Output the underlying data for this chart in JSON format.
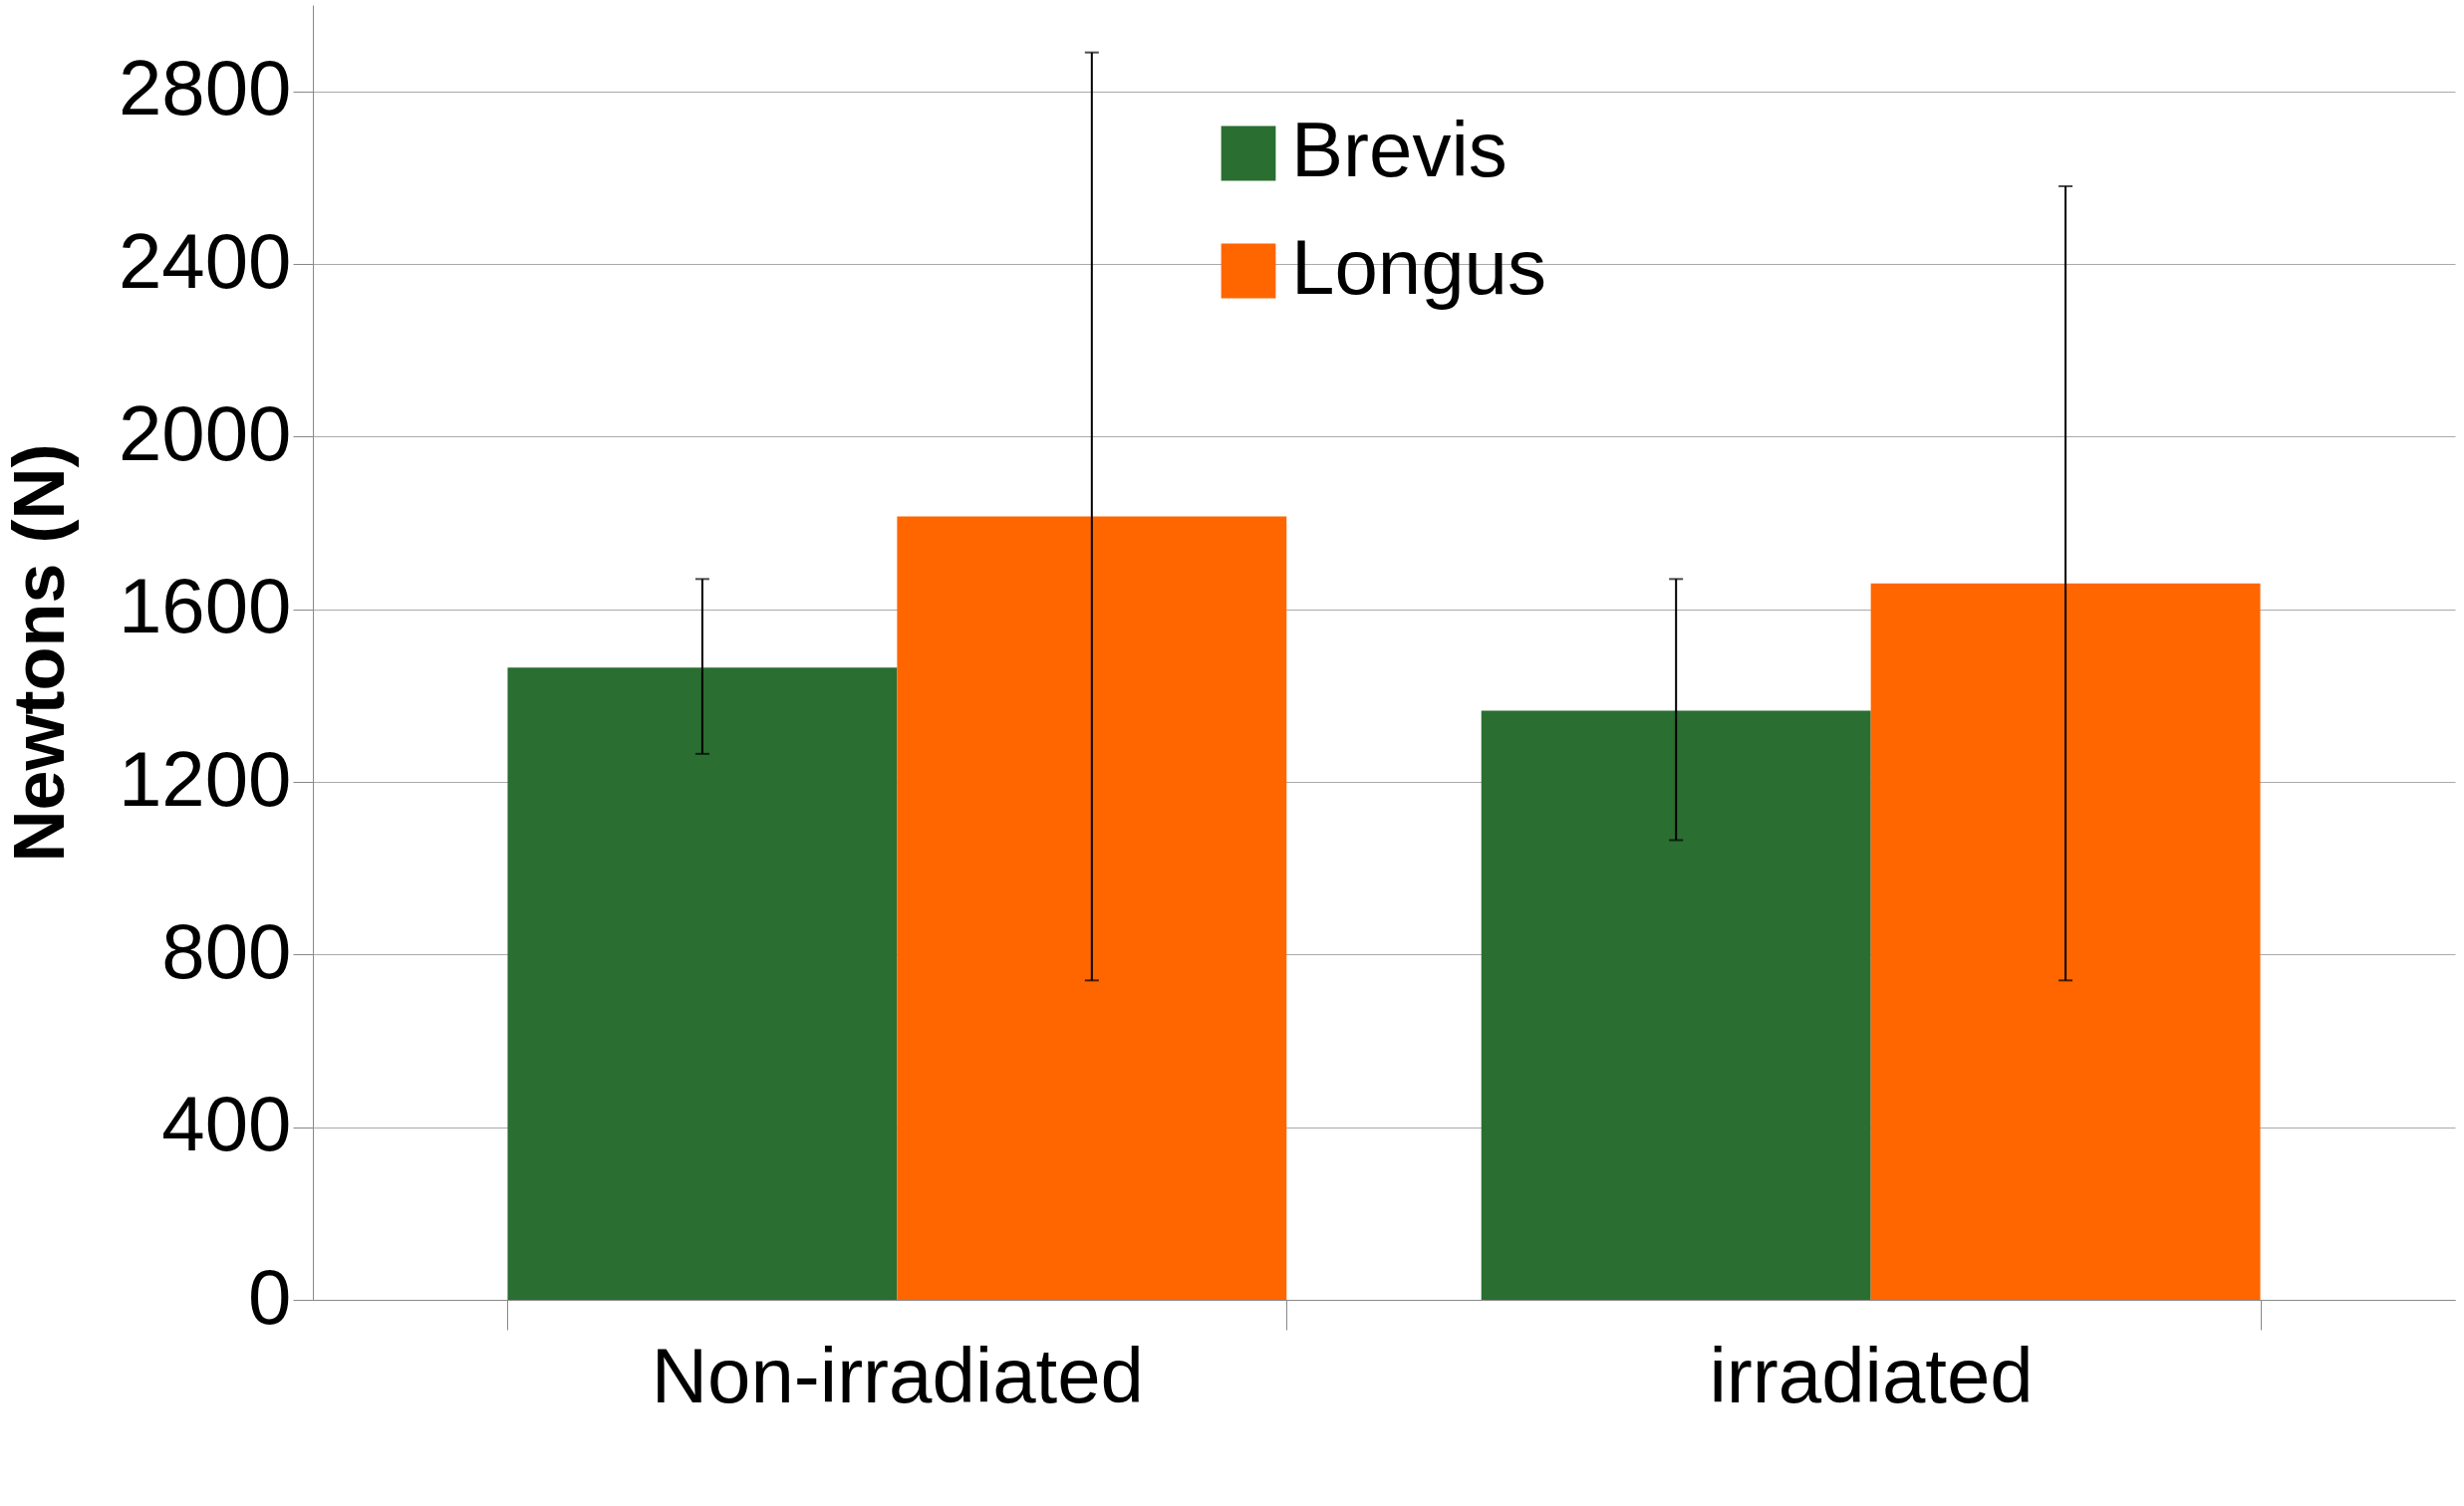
{
  "chart_data": {
    "type": "bar",
    "ylabel": "Newtons (N)",
    "categories": [
      "Non-irradiated",
      "irradiated"
    ],
    "series": [
      {
        "name": "Brevis",
        "color": "#2a6e31",
        "values": [
          1465,
          1365
        ],
        "errors": [
          [
            1265,
            1670
          ],
          [
            1065,
            1670
          ]
        ]
      },
      {
        "name": "Longus",
        "color": "#ff6600",
        "values": [
          1815,
          1660
        ],
        "errors": [
          [
            740,
            2890
          ],
          [
            740,
            2580
          ]
        ]
      }
    ],
    "ylim": [
      0,
      3000
    ],
    "yticks": [
      0,
      400,
      800,
      1200,
      1600,
      2000,
      2400,
      2800
    ],
    "grid": "y",
    "legend": "top right"
  }
}
